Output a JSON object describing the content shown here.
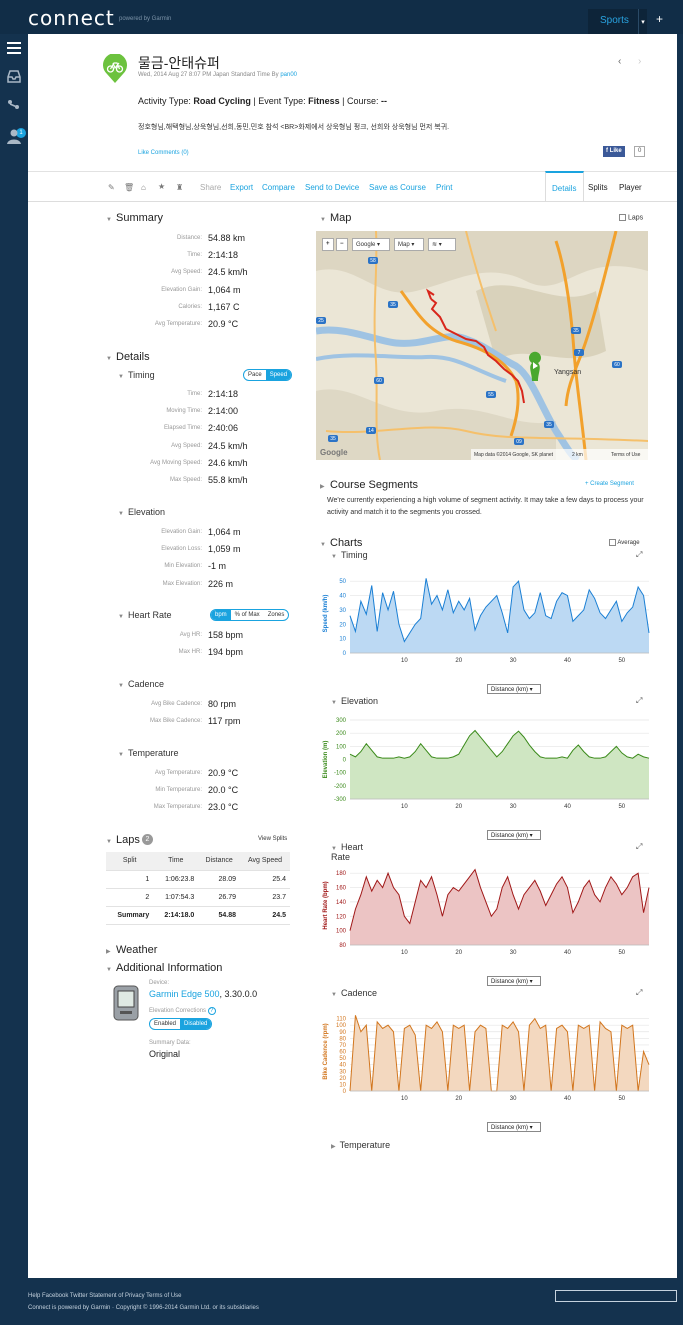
{
  "app": {
    "logo": "connect",
    "powered": "powered by Garmin",
    "sports": "Sports",
    "plus": "+"
  },
  "activity": {
    "title": "물금-안태슈퍼",
    "meta_prefix": "Wed, 2014 Aug 27 8:07 PM Japan Standard Time By",
    "user": "pan00",
    "type_label": "Activity Type:",
    "type": "Road Cycling",
    "event_label": "| Event Type:",
    "event": "Fitness",
    "course_label": "| Course:",
    "course": "--",
    "description": "정호형님,해택형님,상욱형님,선희,동민,민호 참석 <BR>화제에서 상욱형님 펑크, 선희와 상욱형님 먼저 복귀.",
    "like_comments": "Like Comments (0)",
    "fb_like": "Like",
    "fb_count": "0"
  },
  "actions": [
    "Share",
    "Export",
    "Compare",
    "Send to Device",
    "Save as Course",
    "Print"
  ],
  "tabs": [
    "Details",
    "Splits",
    "Player"
  ],
  "summary": {
    "title": "Summary",
    "rows": [
      {
        "label": "Distance:",
        "value": "54.88 km"
      },
      {
        "label": "Time:",
        "value": "2:14:18"
      },
      {
        "label": "Avg Speed:",
        "value": "24.5 km/h"
      },
      {
        "label": "Elevation Gain:",
        "value": "1,064 m"
      },
      {
        "label": "Calories:",
        "value": "1,167 C"
      },
      {
        "label": "Avg Temperature:",
        "value": "20.9 °C"
      }
    ]
  },
  "details": {
    "title": "Details",
    "timing": {
      "title": "Timing",
      "toggle": [
        "Pace",
        "Speed"
      ],
      "rows": [
        {
          "label": "Time:",
          "value": "2:14:18"
        },
        {
          "label": "Moving Time:",
          "value": "2:14:00"
        },
        {
          "label": "Elapsed Time:",
          "value": "2:40:06"
        },
        {
          "label": "Avg Speed:",
          "value": "24.5 km/h"
        },
        {
          "label": "Avg Moving Speed:",
          "value": "24.6 km/h"
        },
        {
          "label": "Max Speed:",
          "value": "55.8 km/h"
        }
      ]
    },
    "elevation": {
      "title": "Elevation",
      "rows": [
        {
          "label": "Elevation Gain:",
          "value": "1,064 m"
        },
        {
          "label": "Elevation Loss:",
          "value": "1,059 m"
        },
        {
          "label": "Min Elevation:",
          "value": "-1 m"
        },
        {
          "label": "Max Elevation:",
          "value": "226 m"
        }
      ]
    },
    "heart_rate": {
      "title": "Heart Rate",
      "toggle": [
        "bpm",
        "% of Max",
        "Zones"
      ],
      "rows": [
        {
          "label": "Avg HR:",
          "value": "158 bpm"
        },
        {
          "label": "Max HR:",
          "value": "194 bpm"
        }
      ]
    },
    "cadence": {
      "title": "Cadence",
      "rows": [
        {
          "label": "Avg Bike Cadence:",
          "value": "80 rpm"
        },
        {
          "label": "Max Bike Cadence:",
          "value": "117 rpm"
        }
      ]
    },
    "temperature": {
      "title": "Temperature",
      "rows": [
        {
          "label": "Avg Temperature:",
          "value": "20.9 °C"
        },
        {
          "label": "Min Temperature:",
          "value": "20.0 °C"
        },
        {
          "label": "Max Temperature:",
          "value": "23.0 °C"
        }
      ]
    }
  },
  "laps": {
    "title": "Laps",
    "count": "2",
    "view_splits": "View Splits",
    "headers": [
      "Split",
      "Time",
      "Distance",
      "Avg Speed"
    ],
    "rows": [
      [
        "1",
        "1:06:23.8",
        "28.09",
        "25.4"
      ],
      [
        "2",
        "1:07:54.3",
        "26.79",
        "23.7"
      ],
      [
        "Summary",
        "2:14:18.0",
        "54.88",
        "24.5"
      ]
    ]
  },
  "weather": {
    "title": "Weather"
  },
  "additional": {
    "title": "Additional Information",
    "device_label": "Device:",
    "device": "Garmin Edge 500",
    "firmware": ", 3.30.0.0",
    "corrections_label": "Elevation Corrections",
    "corrections_toggle": [
      "Enabled",
      "Disabled"
    ],
    "summary_label": "Summary Data:",
    "summary_value": "Original"
  },
  "map": {
    "title": "Map",
    "laps": "Laps",
    "buttons": [
      "+",
      "−",
      "Google",
      "Map"
    ],
    "labels": [
      "Yangsan"
    ],
    "route_numbers": [
      "58",
      "35",
      "25",
      "60",
      "14",
      "35",
      "55",
      "35",
      "60",
      "7",
      "35",
      "09"
    ],
    "attribution": "Map data ©2014 Google, SK planet",
    "scale": "2 km",
    "terms": "Terms of Use",
    "google": "Google"
  },
  "course_segments": {
    "title": "Course Segments",
    "create": "+ Create Segment",
    "text": "We're currently experiencing a high volume of segment activity. It may take a few days to process your activity and match it to the segments you crossed."
  },
  "charts_header": {
    "title": "Charts",
    "average": "Average"
  },
  "x_select": "Distance (km)",
  "chart_data": [
    {
      "type": "area",
      "title": "Timing",
      "ylabel": "Speed (km/h)",
      "xlabel": "Distance (km)",
      "color": "#1a7fd4",
      "fill": "#bcd9f3",
      "ylim": [
        0,
        55
      ],
      "yticks": [
        0,
        10,
        20,
        30,
        40,
        50
      ],
      "xlim": [
        0,
        55
      ],
      "xticks": [
        10,
        20,
        30,
        40,
        50
      ],
      "x": [
        0,
        1,
        2,
        3,
        4,
        5,
        6,
        7,
        8,
        9,
        10,
        11,
        12,
        13,
        14,
        15,
        16,
        17,
        18,
        19,
        20,
        21,
        22,
        23,
        24,
        25,
        26,
        27,
        28,
        29,
        30,
        31,
        32,
        33,
        34,
        35,
        36,
        37,
        38,
        39,
        40,
        41,
        42,
        43,
        44,
        45,
        46,
        47,
        48,
        49,
        50,
        51,
        52,
        53,
        54,
        55
      ],
      "y": [
        26,
        15,
        36,
        27,
        47,
        15,
        42,
        30,
        43,
        20,
        8,
        14,
        20,
        24,
        52,
        34,
        40,
        30,
        44,
        28,
        36,
        30,
        38,
        16,
        26,
        32,
        36,
        40,
        28,
        14,
        46,
        50,
        30,
        24,
        28,
        42,
        26,
        24,
        36,
        42,
        40,
        22,
        26,
        30,
        44,
        38,
        28,
        24,
        30,
        36,
        22,
        28,
        32,
        46,
        40,
        14
      ]
    },
    {
      "type": "area",
      "title": "Elevation",
      "ylabel": "Elevation (m)",
      "xlabel": "Distance (km)",
      "color": "#3a8a1a",
      "fill": "#cfe6c2",
      "ylim": [
        -300,
        300
      ],
      "yticks": [
        -300,
        -200,
        -100,
        0,
        100,
        200,
        300
      ],
      "xlim": [
        0,
        55
      ],
      "xticks": [
        10,
        20,
        30,
        40,
        50
      ],
      "x": [
        0,
        1,
        2,
        3,
        4,
        5,
        6,
        7,
        8,
        9,
        10,
        11,
        12,
        13,
        14,
        15,
        16,
        17,
        18,
        19,
        20,
        21,
        22,
        23,
        24,
        25,
        26,
        27,
        28,
        29,
        30,
        31,
        32,
        33,
        34,
        35,
        36,
        37,
        38,
        39,
        40,
        41,
        42,
        43,
        44,
        45,
        46,
        47,
        48,
        49,
        50,
        51,
        52,
        53,
        54,
        55
      ],
      "y": [
        40,
        20,
        60,
        120,
        70,
        20,
        10,
        10,
        10,
        20,
        10,
        20,
        60,
        120,
        70,
        20,
        10,
        10,
        10,
        20,
        40,
        110,
        180,
        220,
        170,
        120,
        70,
        20,
        60,
        120,
        180,
        215,
        170,
        110,
        60,
        20,
        10,
        10,
        10,
        20,
        10,
        70,
        110,
        60,
        20,
        10,
        10,
        20,
        60,
        100,
        50,
        20,
        10,
        40,
        20,
        10
      ]
    },
    {
      "type": "area",
      "title": "Heart Rate",
      "ylabel": "Heart Rate (bpm)",
      "xlabel": "Distance (km)",
      "color": "#a01818",
      "fill": "#ecc4c4",
      "ylim": [
        80,
        190
      ],
      "yticks": [
        80,
        100,
        120,
        140,
        160,
        180
      ],
      "xlim": [
        0,
        55
      ],
      "xticks": [
        10,
        20,
        30,
        40,
        50
      ],
      "x": [
        0,
        1,
        2,
        3,
        4,
        5,
        6,
        7,
        8,
        9,
        10,
        11,
        12,
        13,
        14,
        15,
        16,
        17,
        18,
        19,
        20,
        21,
        22,
        23,
        24,
        25,
        26,
        27,
        28,
        29,
        30,
        31,
        32,
        33,
        34,
        35,
        36,
        37,
        38,
        39,
        40,
        41,
        42,
        43,
        44,
        45,
        46,
        47,
        48,
        49,
        50,
        51,
        52,
        53,
        54,
        55
      ],
      "y": [
        100,
        130,
        150,
        175,
        155,
        170,
        160,
        180,
        160,
        150,
        120,
        110,
        140,
        170,
        160,
        175,
        150,
        120,
        150,
        160,
        155,
        165,
        175,
        185,
        160,
        140,
        120,
        130,
        160,
        175,
        150,
        130,
        150,
        160,
        170,
        155,
        135,
        150,
        165,
        175,
        160,
        125,
        140,
        160,
        170,
        150,
        140,
        160,
        175,
        165,
        150,
        160,
        175,
        180,
        125,
        160
      ]
    },
    {
      "type": "area",
      "title": "Cadence",
      "ylabel": "Bike Cadence (rpm)",
      "xlabel": "Distance (km)",
      "color": "#d2761e",
      "fill": "#f3d8bf",
      "ylim": [
        0,
        120
      ],
      "yticks": [
        0,
        10,
        20,
        30,
        40,
        50,
        60,
        70,
        80,
        90,
        100,
        110
      ],
      "xlim": [
        0,
        55
      ],
      "xticks": [
        10,
        20,
        30,
        40,
        50
      ],
      "x": [
        0,
        1,
        2,
        3,
        4,
        5,
        6,
        7,
        8,
        9,
        10,
        11,
        12,
        13,
        14,
        15,
        16,
        17,
        18,
        19,
        20,
        21,
        22,
        23,
        24,
        25,
        26,
        27,
        28,
        29,
        30,
        31,
        32,
        33,
        34,
        35,
        36,
        37,
        38,
        39,
        40,
        41,
        42,
        43,
        44,
        45,
        46,
        47,
        48,
        49,
        50,
        51,
        52,
        53,
        54,
        55
      ],
      "y": [
        0,
        115,
        90,
        100,
        0,
        105,
        95,
        100,
        90,
        0,
        95,
        100,
        85,
        0,
        100,
        95,
        105,
        90,
        0,
        100,
        95,
        100,
        0,
        90,
        100,
        95,
        0,
        0,
        100,
        95,
        105,
        90,
        0,
        100,
        110,
        95,
        100,
        0,
        95,
        100,
        90,
        0,
        100,
        95,
        100,
        0,
        105,
        95,
        90,
        0,
        100,
        95,
        100,
        0,
        60,
        40
      ]
    }
  ],
  "temperature_chart": {
    "title": "Temperature"
  },
  "footer": {
    "links": "Help Facebook Twitter Statement of Privacy Terms of Use",
    "copyright": "Connect is powered by Garmin · Copyright © 1996-2014 Garmin Ltd. or its subsidiaries"
  },
  "colors": {
    "accent": "#1aa3df",
    "nav": "#14324e",
    "route": "#d8261b"
  }
}
